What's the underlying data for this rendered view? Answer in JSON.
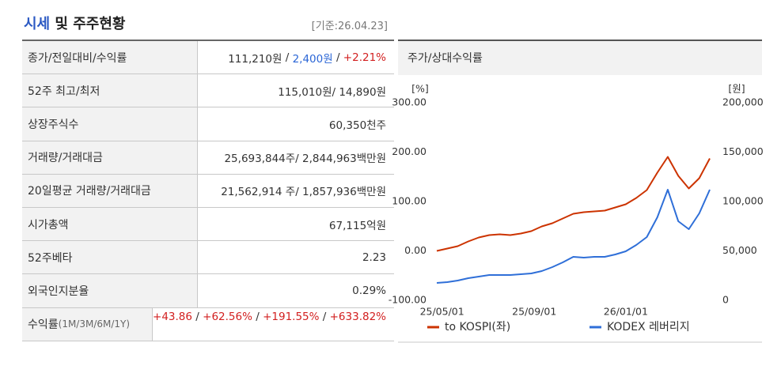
{
  "header": {
    "title_parts": [
      {
        "text": "시세",
        "color": "#2b59c3"
      },
      {
        "text": " 및 주주현황"
      }
    ],
    "date": "[기준:26.04.23]"
  },
  "table": {
    "rows": [
      {
        "label": "종가/전일대비/수익률",
        "value": [
          {
            "text": "111,210원"
          },
          {
            "text": " / "
          },
          {
            "text": "2,400원",
            "color": "#2b66d6"
          },
          {
            "text": " / "
          },
          {
            "text": "+2.21%",
            "color": "#d21f1f"
          }
        ]
      },
      {
        "label": "52주 최고/최저",
        "value": [
          {
            "text": "115,010원/ 14,890원"
          }
        ]
      },
      {
        "label": "상장주식수",
        "value": [
          {
            "text": "60,350천주"
          }
        ]
      },
      {
        "label": "거래량/거래대금",
        "value": [
          {
            "text": "25,693,844주/ 2,844,963백만원"
          }
        ]
      },
      {
        "label": "20일평균 거래량/거래대금",
        "value": [
          {
            "text": "21,562,914 주/ 1,857,936백만원"
          }
        ]
      },
      {
        "label": "시가총액",
        "value": [
          {
            "text": "67,115억원"
          }
        ]
      },
      {
        "label": "52주베타",
        "value": [
          {
            "text": "2.23"
          }
        ]
      },
      {
        "label": "외국인지분율",
        "value": [
          {
            "text": "0.29%"
          }
        ]
      },
      {
        "label": "수익률",
        "sublabel": "(1M/3M/6M/1Y)",
        "value": [
          {
            "text": "+43.86",
            "color": "#d21f1f"
          },
          {
            "text": " / "
          },
          {
            "text": "+62.56%",
            "color": "#d21f1f"
          },
          {
            "text": " / "
          },
          {
            "text": "+191.55%",
            "color": "#d21f1f"
          },
          {
            "text": " / "
          },
          {
            "text": "+633.82%",
            "color": "#d21f1f"
          }
        ]
      }
    ]
  },
  "chart_data": {
    "type": "line",
    "title": "주가/상대수익률",
    "y_label": "[%]",
    "y2_label": "[원]",
    "x": [
      "25/04/24",
      "25/05/08",
      "25/05/22",
      "25/06/05",
      "25/06/19",
      "25/07/03",
      "25/07/17",
      "25/07/31",
      "25/08/14",
      "25/08/28",
      "25/09/11",
      "25/09/25",
      "25/10/09",
      "25/10/23",
      "25/11/06",
      "25/11/20",
      "25/12/04",
      "25/12/18",
      "26/01/01",
      "26/01/15",
      "26/01/29",
      "26/02/12",
      "26/02/26",
      "26/03/12",
      "26/03/26",
      "26/04/09",
      "26/04/23"
    ],
    "xlim": [
      "25/04/24",
      "26/04/23"
    ],
    "xticks": [
      "25/05/01",
      "25/09/01",
      "26/01/01"
    ],
    "ylim": [
      -100,
      300
    ],
    "yticks": [
      {
        "value": -100,
        "label": "-100.00"
      },
      {
        "value": 0,
        "label": "0.00"
      },
      {
        "value": 100,
        "label": "100.00"
      },
      {
        "value": 200,
        "label": "200.00"
      },
      {
        "value": 300,
        "label": "300.00"
      }
    ],
    "y2lim": [
      0,
      200000
    ],
    "y2ticks": [
      0,
      {
        "value": 50000,
        "label": "50,000"
      },
      {
        "value": 100000,
        "label": "100,000"
      },
      {
        "value": 150000,
        "label": "150,000"
      },
      {
        "value": 200000,
        "label": "200,000"
      }
    ],
    "series": [
      {
        "name": "to KOSPI(좌)",
        "color": "#cc3300",
        "values": [
          0,
          4.8,
          9.6,
          19.2,
          27.2,
          32,
          33.6,
          32,
          35.2,
          40,
          49.6,
          56,
          65.6,
          75.2,
          78.4,
          80,
          81.6,
          88,
          94.4,
          107.2,
          123.2,
          158.4,
          190.4,
          152,
          126.4,
          147.2,
          187.2
        ]
      },
      {
        "name": "KODEX 레버리지",
        "color": "#2f6fd8",
        "axis": "y2",
        "values": [
          17600,
          18400,
          20000,
          22400,
          24000,
          25600,
          25600,
          25600,
          26400,
          27200,
          29600,
          33600,
          38400,
          44000,
          43200,
          44000,
          44000,
          46400,
          49600,
          56000,
          64000,
          84000,
          112000,
          80000,
          72000,
          88000,
          112000
        ]
      }
    ]
  }
}
